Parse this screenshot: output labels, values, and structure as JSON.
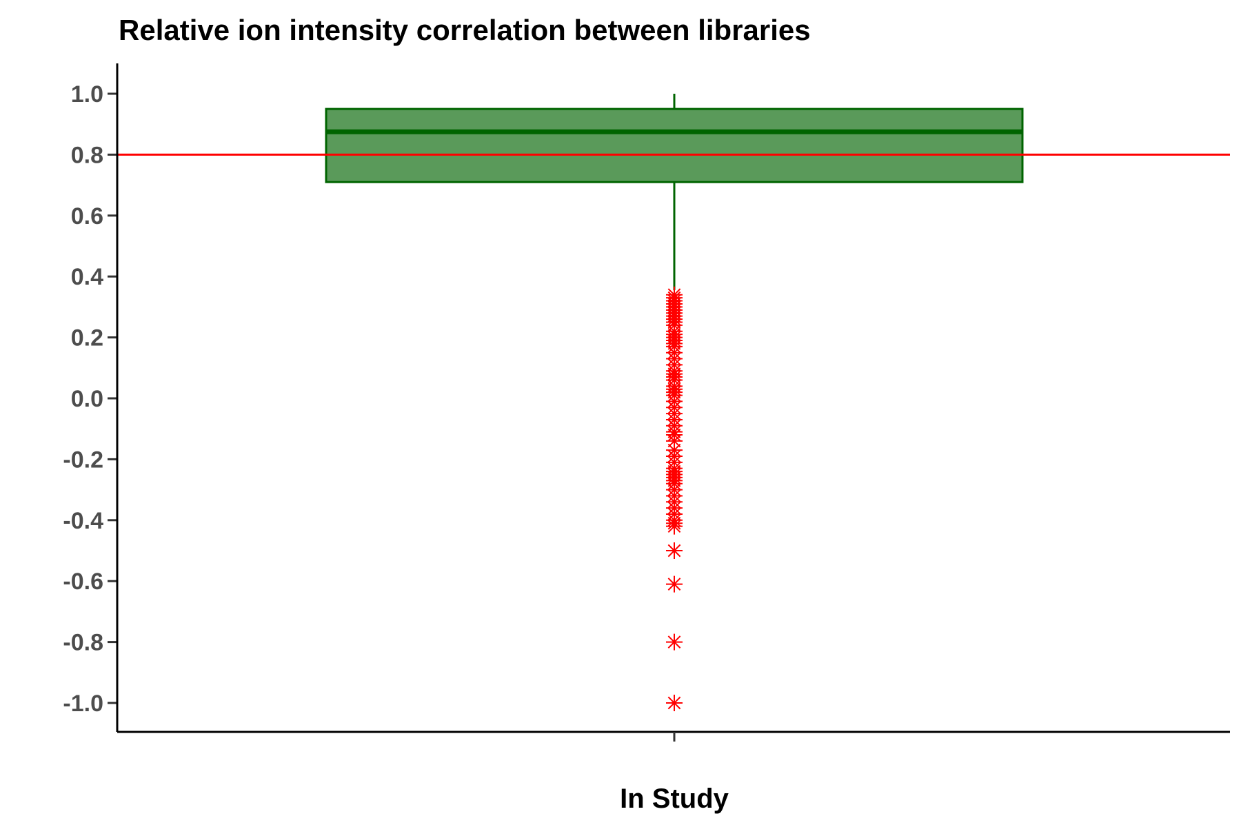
{
  "chart_data": {
    "type": "box",
    "title": "Relative ion intensity correlation between libraries",
    "xlabel": "",
    "ylabel": "",
    "categories": [
      "In Study"
    ],
    "ylim": [
      -1.1,
      1.1
    ],
    "yticks": [
      1.0,
      0.8,
      0.6,
      0.4,
      0.2,
      0.0,
      -0.2,
      -0.4,
      -0.6,
      -0.8,
      -1.0
    ],
    "ytick_labels": [
      "1.0",
      "0.8",
      "0.6",
      "0.4",
      "0.2",
      "0.0",
      "-0.2",
      "-0.4",
      "-0.6",
      "-0.8",
      "-1.0"
    ],
    "grid": false,
    "box": {
      "category": "In Study",
      "whisker_low": 0.355,
      "q1": 0.71,
      "median": 0.875,
      "q3": 0.95,
      "whisker_high": 1.0,
      "outliers": [
        0.34,
        0.33,
        0.32,
        0.31,
        0.3,
        0.29,
        0.28,
        0.27,
        0.26,
        0.25,
        0.24,
        0.22,
        0.21,
        0.2,
        0.19,
        0.18,
        0.17,
        0.15,
        0.13,
        0.11,
        0.09,
        0.08,
        0.07,
        0.06,
        0.04,
        0.03,
        0.02,
        0.01,
        -0.01,
        -0.03,
        -0.05,
        -0.07,
        -0.09,
        -0.11,
        -0.12,
        -0.14,
        -0.17,
        -0.19,
        -0.21,
        -0.23,
        -0.24,
        -0.25,
        -0.26,
        -0.27,
        -0.28,
        -0.3,
        -0.32,
        -0.34,
        -0.36,
        -0.38,
        -0.4,
        -0.41,
        -0.42,
        -0.5,
        -0.61,
        -0.8,
        -1.0
      ]
    },
    "reference_line": {
      "y": 0.8,
      "color": "#ff0000"
    },
    "colors": {
      "box_fill": "#5a9a5a",
      "box_stroke": "#006400",
      "outlier": "#ff0000"
    }
  }
}
